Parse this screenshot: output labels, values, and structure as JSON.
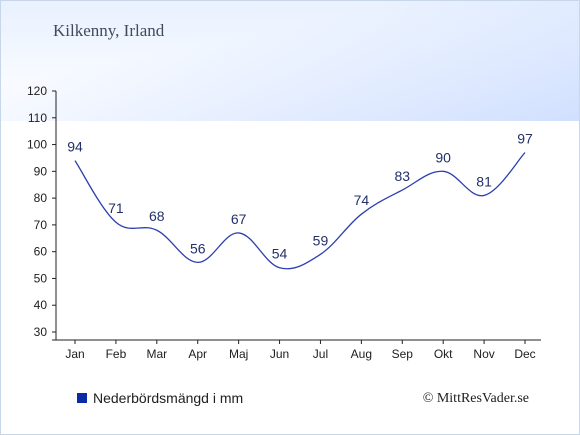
{
  "title": "Kilkenny, Irland",
  "legend": {
    "label": "Nederbördsmängd i mm",
    "color": "#0a2aa6"
  },
  "copyright": "© MittResVader.se",
  "chart_data": {
    "type": "line",
    "title": "Kilkenny, Irland",
    "categories": [
      "Jan",
      "Feb",
      "Mar",
      "Apr",
      "Maj",
      "Jun",
      "Jul",
      "Aug",
      "Sep",
      "Okt",
      "Nov",
      "Dec"
    ],
    "series": [
      {
        "name": "Nederbördsmängd i mm",
        "values": [
          94,
          71,
          68,
          56,
          67,
          54,
          59,
          74,
          83,
          90,
          81,
          97
        ],
        "color": "#2d3fb0"
      }
    ],
    "ylim": [
      30,
      120
    ],
    "yticks": [
      30,
      40,
      50,
      60,
      70,
      80,
      90,
      100,
      110,
      120
    ],
    "grid": false,
    "legend_position": "bottom-left"
  }
}
